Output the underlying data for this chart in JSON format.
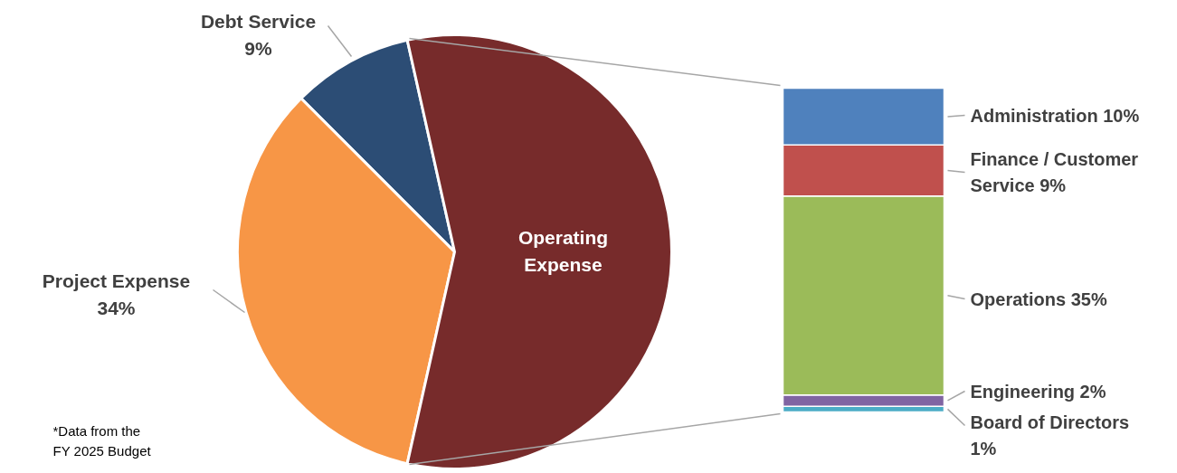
{
  "chart_data": [
    {
      "type": "pie",
      "categories": [
        "Debt Service",
        "Project Expense",
        "Operating Expense"
      ],
      "values": [
        9,
        34,
        57
      ],
      "colors": [
        "#2c4d75",
        "#f79646",
        "#772b2b"
      ],
      "value_labels": [
        "9%",
        "34%",
        null
      ],
      "annotations": [
        "*Data from the FY 2025 Budget"
      ]
    },
    {
      "type": "bar",
      "stacked": true,
      "data_labels": true,
      "categories": [
        null
      ],
      "series": [
        {
          "name": "Board of Directors",
          "color": "#4bacc6",
          "values": [
            1
          ],
          "value_labels": [
            "1%"
          ]
        },
        {
          "name": "Engineering",
          "color": "#8064a2",
          "values": [
            2
          ],
          "value_labels": [
            "2%"
          ]
        },
        {
          "name": "Operations",
          "color": "#9bbb59",
          "values": [
            35
          ],
          "value_labels": [
            "35%"
          ]
        },
        {
          "name": "Finance / Customer Service",
          "color": "#c0504d",
          "values": [
            9
          ],
          "value_labels": [
            "9%"
          ]
        },
        {
          "name": "Administration",
          "color": "#4f81bd",
          "values": [
            10
          ],
          "value_labels": [
            "10%"
          ]
        }
      ]
    }
  ]
}
